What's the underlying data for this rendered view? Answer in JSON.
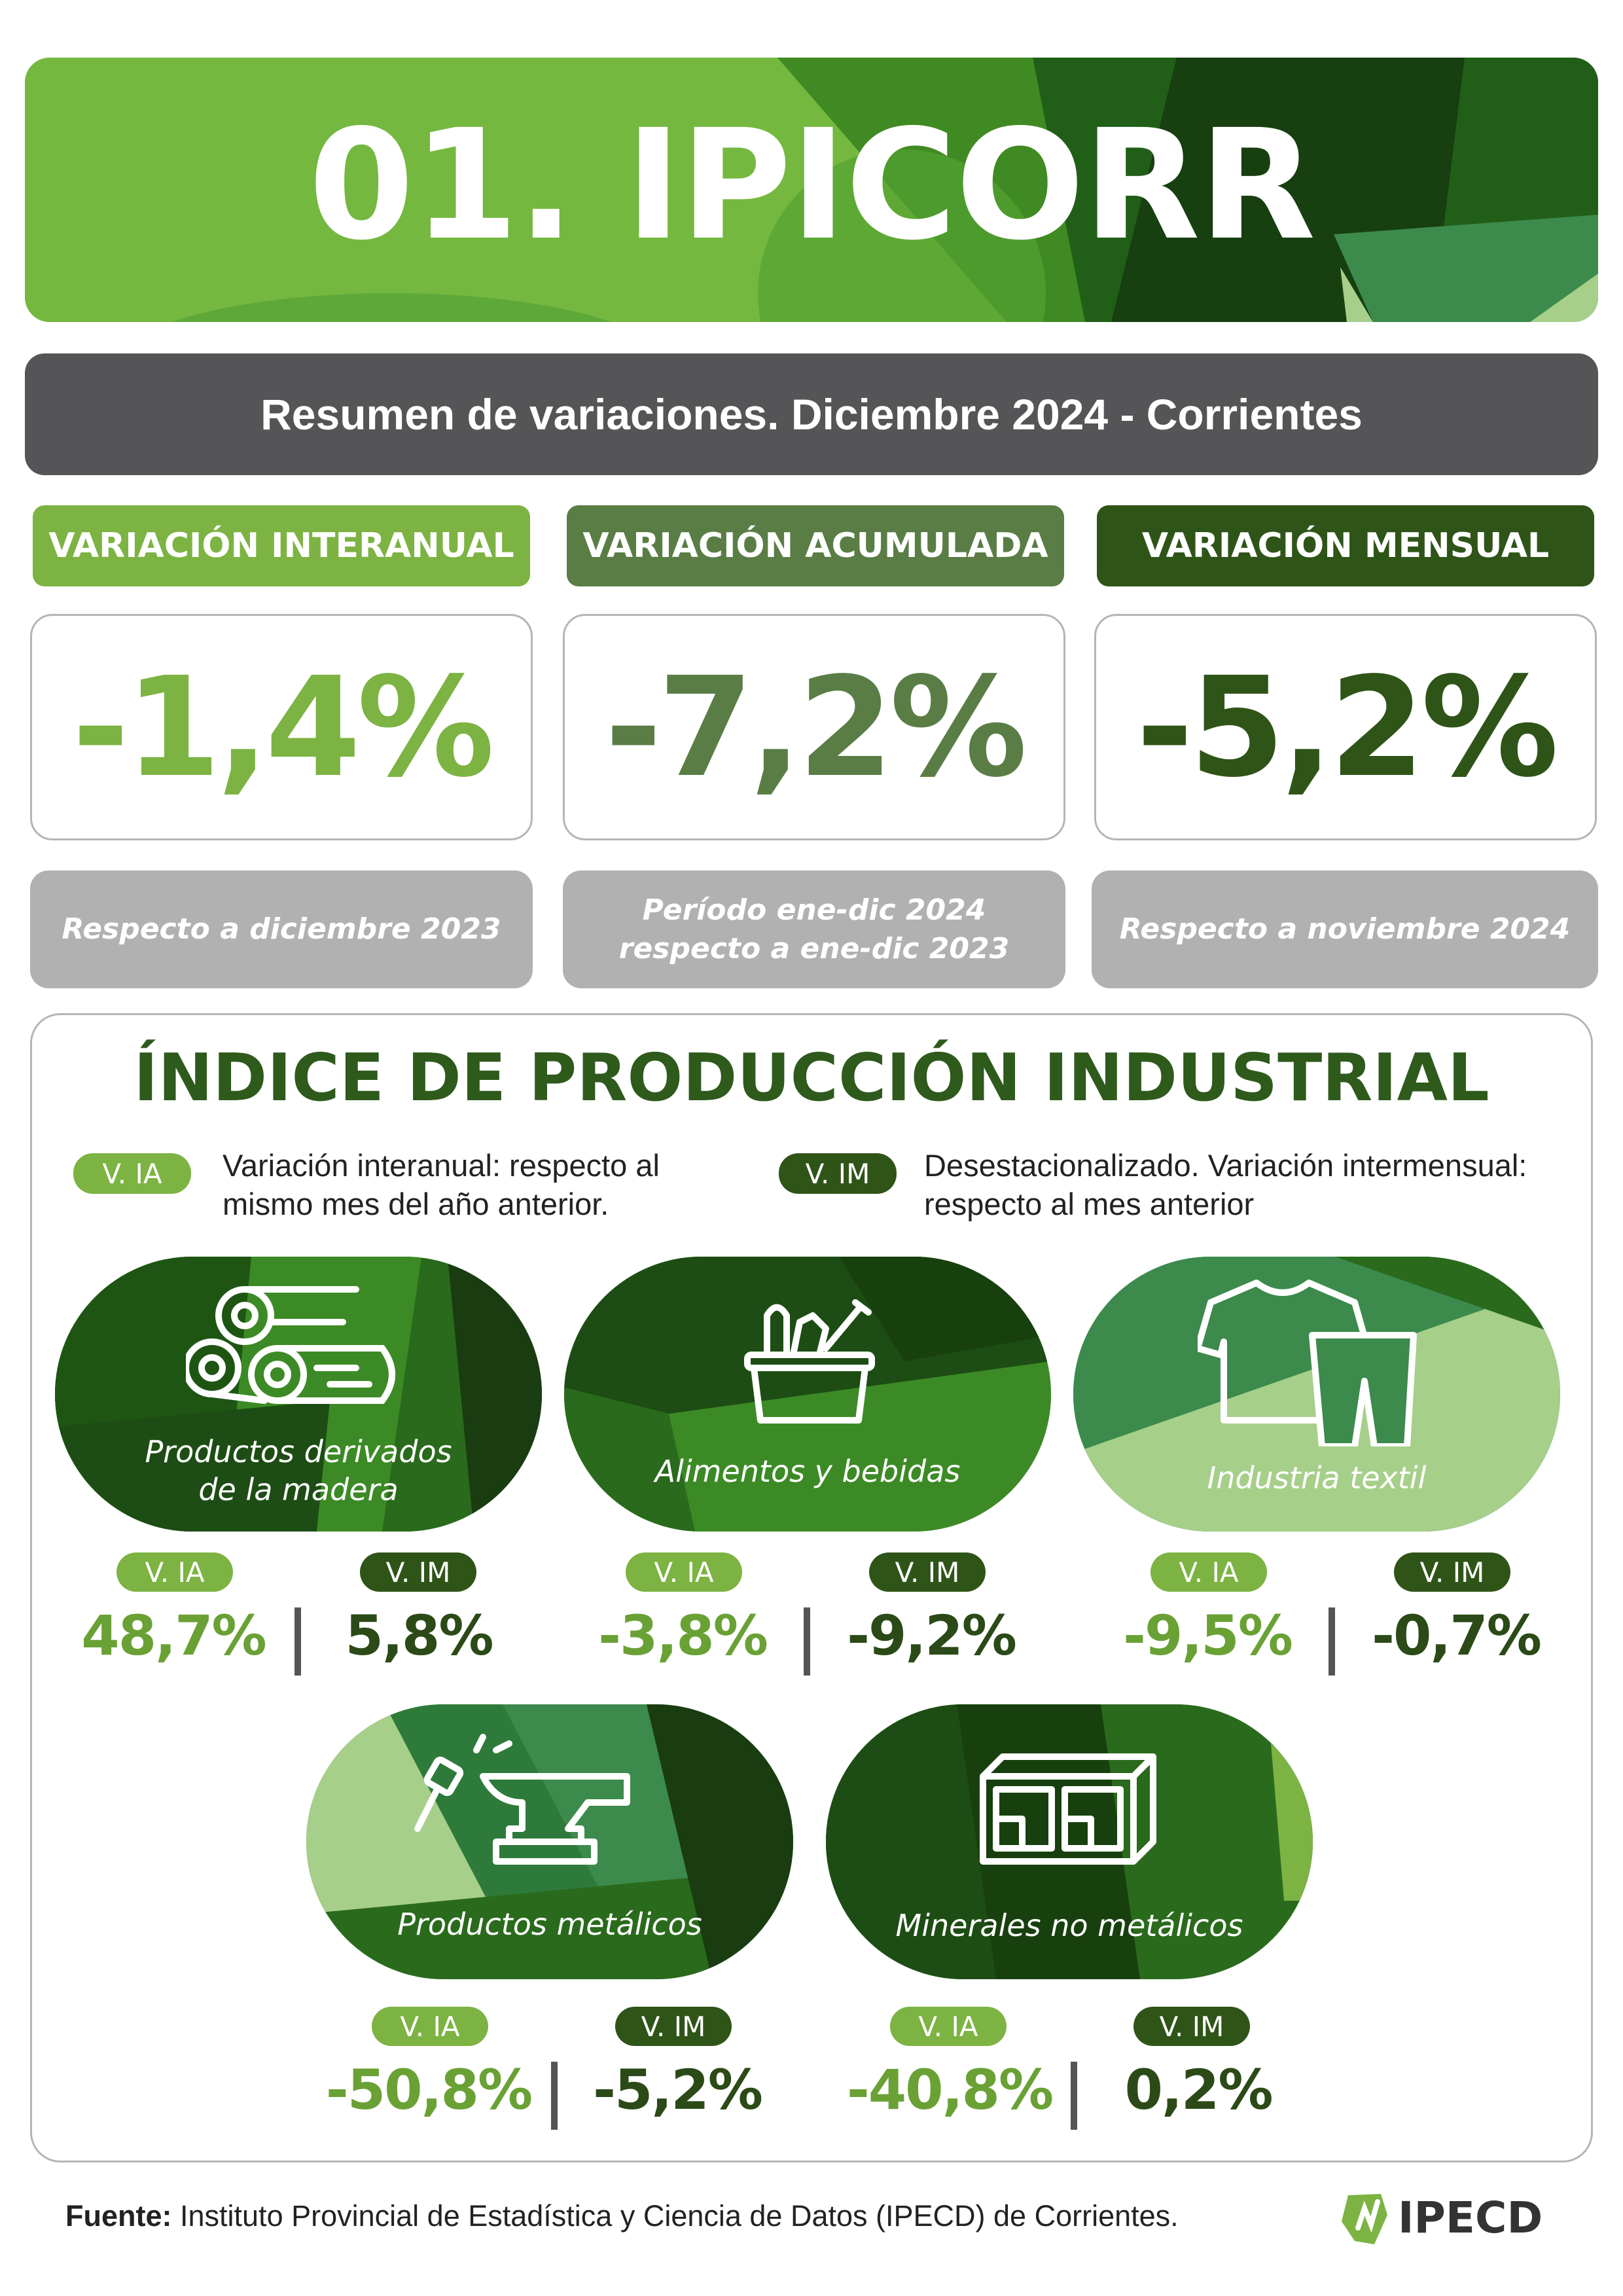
{
  "header": {
    "title": "01. IPICORR"
  },
  "subtitle": "Resumen de variaciones. Diciembre 2024 - Corrientes",
  "variations": [
    {
      "label": "VARIACIÓN INTERANUAL",
      "value": "-1,4%",
      "note_line1": "Respecto a diciembre 2023",
      "note_line2": "",
      "color": "#7cb342"
    },
    {
      "label": "VARIACIÓN ACUMULADA",
      "value": "-7,2%",
      "note_line1": "Período ene-dic 2024",
      "note_line2": "respecto a ene-dic 2023",
      "color": "#5a7d45"
    },
    {
      "label": "VARIACIÓN MENSUAL",
      "value": "-5,2%",
      "note_line1": "Respecto a noviembre 2024",
      "note_line2": "",
      "color": "#2f5418"
    }
  ],
  "index": {
    "title": "ÍNDICE DE PRODUCCIÓN INDUSTRIAL",
    "legend": {
      "ia_tag": "V. IA",
      "ia_line1": "Variación interanual: respecto al",
      "ia_line2": "mismo mes del año anterior.",
      "im_tag": "V. IM",
      "im_line1": "Desestacionalizado. Variación intermensual:",
      "im_line2": "respecto al mes anterior"
    },
    "sectors": [
      {
        "name_line1": "Productos derivados",
        "name_line2": "de la madera",
        "icon": "logs-icon",
        "ia_tag": "V. IA",
        "im_tag": "V. IM",
        "ia": "48,7%",
        "im": "5,8%"
      },
      {
        "name_line1": "Alimentos y bebidas",
        "name_line2": "",
        "icon": "food-basket-icon",
        "ia_tag": "V. IA",
        "im_tag": "V. IM",
        "ia": "-3,8%",
        "im": "-9,2%"
      },
      {
        "name_line1": "Industria textil",
        "name_line2": "",
        "icon": "clothes-icon",
        "ia_tag": "V. IA",
        "im_tag": "V. IM",
        "ia": "-9,5%",
        "im": "-0,7%"
      },
      {
        "name_line1": "Productos metálicos",
        "name_line2": "",
        "icon": "anvil-hammer-icon",
        "ia_tag": "V. IA",
        "im_tag": "V. IM",
        "ia": "-50,8%",
        "im": "-5,2%"
      },
      {
        "name_line1": "Minerales no metálicos",
        "name_line2": "",
        "icon": "brick-icon",
        "ia_tag": "V. IA",
        "im_tag": "V. IM",
        "ia": "-40,8%",
        "im": "0,2%"
      }
    ]
  },
  "footer": {
    "source_label": "Fuente:",
    "source_text": " Instituto Provincial de Estadística y Ciencia de Datos (IPECD) de Corrientes.",
    "logo_text": "IPECD"
  }
}
